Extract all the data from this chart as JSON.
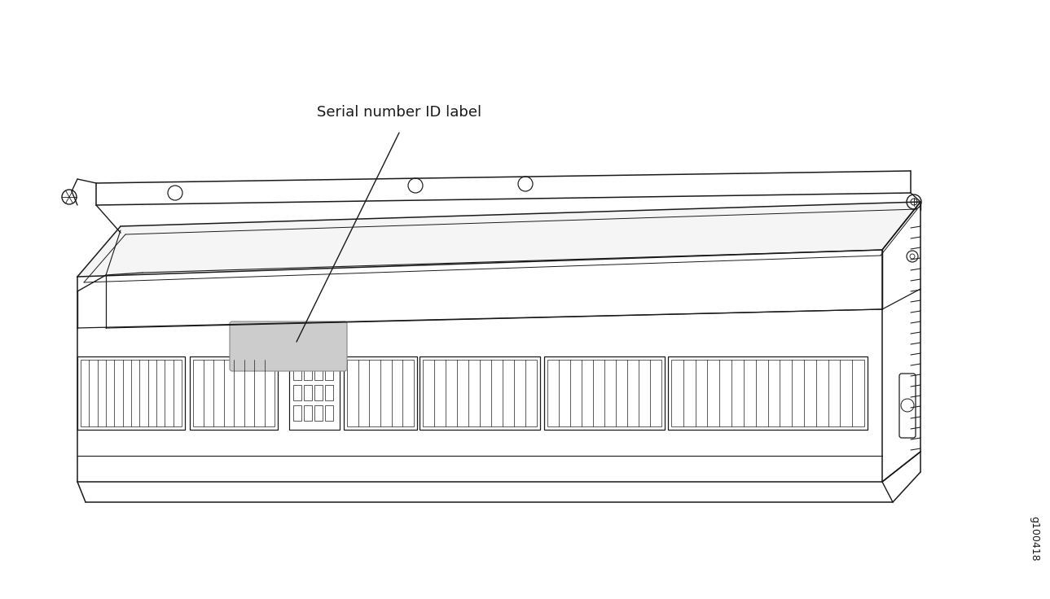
{
  "background_color": "#ffffff",
  "line_color": "#1a1a1a",
  "label_text": "Serial number ID label",
  "label_fontsize": 13,
  "id_text": "g100418",
  "id_fontsize": 9,
  "fig_width": 12.89,
  "fig_height": 7.36
}
